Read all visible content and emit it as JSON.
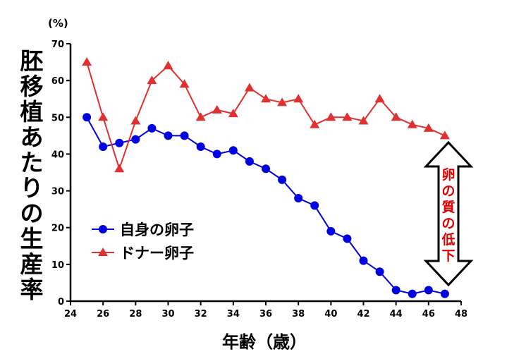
{
  "chart_data": {
    "type": "line",
    "ylabel": "胚移植あたりの生産率",
    "yunit": "(%)",
    "xlabel": "年齢（歳）",
    "xlim": [
      24,
      48
    ],
    "ylim": [
      0,
      70
    ],
    "xticks": [
      24,
      26,
      28,
      30,
      32,
      34,
      36,
      38,
      40,
      42,
      44,
      46,
      48
    ],
    "yticks": [
      0,
      10,
      20,
      30,
      40,
      50,
      60,
      70
    ],
    "x": [
      25,
      26,
      27,
      28,
      29,
      30,
      31,
      32,
      33,
      34,
      35,
      36,
      37,
      38,
      39,
      40,
      41,
      42,
      43,
      44,
      45,
      46,
      47
    ],
    "series": [
      {
        "name": "自身の卵子",
        "color": "#0000e0",
        "marker": "circle",
        "values": [
          50,
          42,
          43,
          44,
          47,
          45,
          45,
          42,
          40,
          41,
          38,
          36,
          33,
          28,
          26,
          19,
          17,
          11,
          8,
          3,
          2,
          3,
          2
        ]
      },
      {
        "name": "ドナー卵子",
        "color": "#e03030",
        "marker": "triangle",
        "values": [
          65,
          50,
          36,
          49,
          60,
          64,
          59,
          50,
          52,
          51,
          58,
          55,
          54,
          55,
          48,
          50,
          50,
          49,
          55,
          50,
          48,
          47,
          45
        ]
      }
    ],
    "legend": "middle-left",
    "annotation": "卵の質の低下",
    "grid": false
  }
}
